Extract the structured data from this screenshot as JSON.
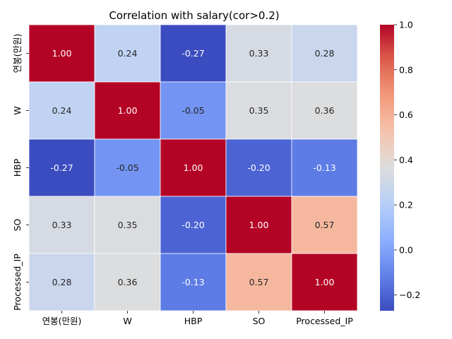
{
  "chart_data": {
    "type": "heatmap",
    "title": "Correlation with salary(cor>0.2)",
    "xlabel": "",
    "ylabel": "",
    "x_categories": [
      "연봉(만원)",
      "W",
      "HBP",
      "SO",
      "Processed_IP"
    ],
    "y_categories": [
      "연봉(만원)",
      "W",
      "HBP",
      "SO",
      "Processed_IP"
    ],
    "values": [
      [
        1.0,
        0.24,
        -0.27,
        0.33,
        0.28
      ],
      [
        0.24,
        1.0,
        -0.05,
        0.35,
        0.36
      ],
      [
        -0.27,
        -0.05,
        1.0,
        -0.2,
        -0.13
      ],
      [
        0.33,
        0.35,
        -0.2,
        1.0,
        0.57
      ],
      [
        0.28,
        0.36,
        -0.13,
        0.57,
        1.0
      ]
    ],
    "annotation_format": "0.00",
    "colormap": "coolwarm",
    "vmin": -0.27,
    "vmax": 1.0,
    "colorbar_ticks": [
      1.0,
      0.8,
      0.6,
      0.4,
      0.2,
      0.0,
      -0.2
    ],
    "colorbar_tick_labels": [
      "1.0",
      "0.8",
      "0.6",
      "0.4",
      "0.2",
      "0.0",
      "−0.2"
    ],
    "cell_border_color": "#ffffff"
  }
}
